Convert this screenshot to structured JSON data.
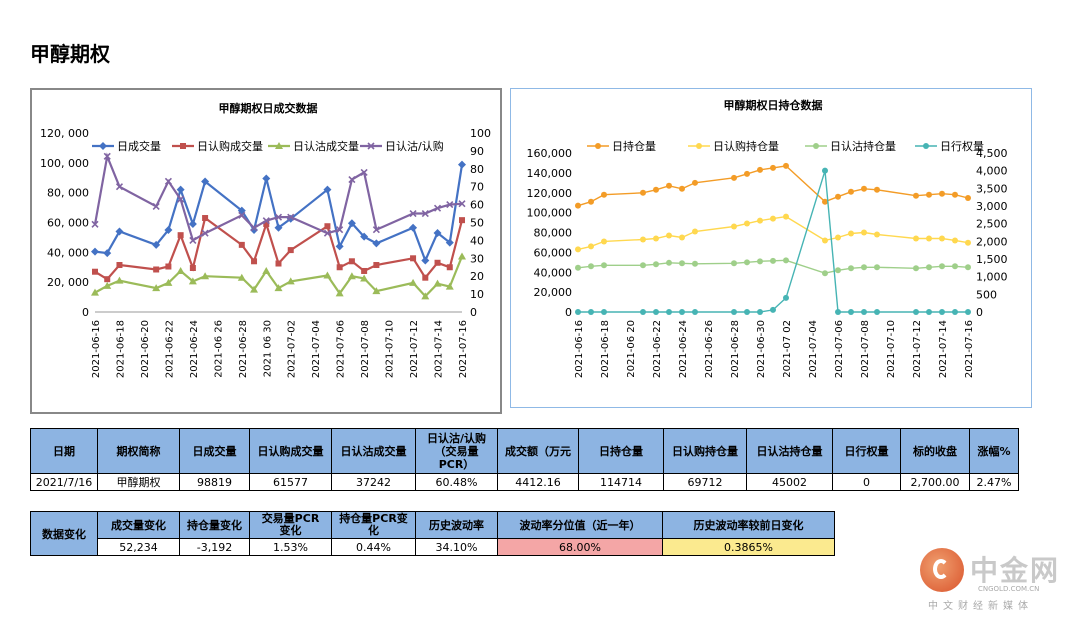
{
  "page_title": "甲醇期权",
  "chart_data": [
    {
      "type": "line",
      "title": "甲醇期权日成交数据",
      "x": [
        "2021-06-16",
        "2021-06-17",
        "2021-06-18",
        "2021-06-21",
        "2021-06-22",
        "2021-06-23",
        "2021-06-24",
        "2021-06-25",
        "2021-06-28",
        "2021-06-29",
        "2021-06-30",
        "2021-07-01",
        "2021-07-02",
        "2021-07-05",
        "2021-07-06",
        "2021-07-07",
        "2021-07-08",
        "2021-07-09",
        "2021-07-12",
        "2021-07-13",
        "2021-07-14",
        "2021-07-15",
        "2021-07-16"
      ],
      "x_ticks": [
        "2021-06-16",
        "2021-06-18",
        "2021-06-20",
        "2021-06-22",
        "2021-06-24",
        "2021-06 26",
        "2021-06-28",
        "2021 06 30",
        "2021-07-02",
        "2021-07-04",
        "2021-07-06",
        "2021-07-08",
        "2021-07-10",
        "2021-07-12",
        "2021-07-14",
        "2021-07-16"
      ],
      "y_left": {
        "range": [
          0,
          120000
        ],
        "ticks": [
          "0",
          "20, 000",
          "40, 000",
          "60, 000",
          "80, 000",
          "100, 000",
          "120, 000"
        ]
      },
      "y_right": {
        "range": [
          0,
          100
        ],
        "ticks": [
          "0",
          "10",
          "20",
          "30",
          "40",
          "50",
          "60",
          "70",
          "80",
          "90",
          "100"
        ]
      },
      "series": [
        {
          "name": "日成交量",
          "axis": "left",
          "color": "#4472c4",
          "marker": "diamond",
          "values": [
            40500,
            39500,
            54000,
            45000,
            55000,
            82000,
            59000,
            87500,
            68000,
            55000,
            89500,
            56500,
            62500,
            82000,
            44000,
            59500,
            50500,
            46000,
            56500,
            34500,
            53000,
            46500,
            98819
          ]
        },
        {
          "name": "日认购成交量",
          "axis": "left",
          "color": "#c0504d",
          "marker": "square",
          "values": [
            27000,
            22000,
            31500,
            28500,
            30500,
            51500,
            29500,
            63000,
            45000,
            34000,
            59000,
            32500,
            41500,
            57500,
            30000,
            34000,
            27500,
            31500,
            36000,
            23000,
            33000,
            30000,
            61577
          ]
        },
        {
          "name": "日认沽成交量",
          "axis": "left",
          "color": "#9bbb59",
          "marker": "triangle",
          "values": [
            13000,
            17500,
            21000,
            16000,
            19500,
            27500,
            20500,
            24000,
            23000,
            15000,
            27500,
            16000,
            20500,
            24500,
            12500,
            24000,
            22500,
            14000,
            19500,
            10500,
            19000,
            17000,
            37242
          ]
        },
        {
          "name": "日认沽/认购",
          "axis": "right",
          "color": "#8064a2",
          "marker": "x",
          "values": [
            49,
            87,
            70,
            59,
            73,
            63,
            40,
            44,
            54,
            47,
            51,
            53,
            53,
            44,
            46,
            74,
            78,
            46,
            55,
            55,
            58,
            60,
            60.48
          ]
        }
      ]
    },
    {
      "type": "line",
      "title": "甲醇期权日持仓数据",
      "x": [
        "2021-06-16",
        "2021-06-17",
        "2021-06-18",
        "2021-06-21",
        "2021-06-22",
        "2021-06-23",
        "2021-06-24",
        "2021-06-25",
        "2021-06-28",
        "2021-06-29",
        "2021-06-30",
        "2021-07-01",
        "2021-07-02",
        "2021-07-05",
        "2021-07-06",
        "2021-07-07",
        "2021-07-08",
        "2021-07-09",
        "2021-07-12",
        "2021-07-13",
        "2021-07-14",
        "2021-07-15",
        "2021-07-16"
      ],
      "x_ticks": [
        "2021-06-16",
        "2021-06-18",
        "2021-06 20",
        "2021-06-22",
        "2021-06-24",
        "2021-06-26",
        "2021-06-28",
        "2021-06-30",
        "2021-07 02",
        "2021-07-04",
        "2021-07-06",
        "2021-07-08",
        "2021-07-10",
        "2021-07-12",
        "2021-07-14",
        "2021-07-16"
      ],
      "y_left": {
        "range": [
          0,
          160000
        ],
        "ticks": [
          "0",
          "20,000",
          "40,000",
          "60,000",
          "80,000",
          "100,000",
          "120,000",
          "140,000",
          "160,000"
        ]
      },
      "y_right": {
        "range": [
          0,
          4500
        ],
        "ticks": [
          "0",
          "500",
          "1,000",
          "1,500",
          "2,000",
          "2,500",
          "3,000",
          "3,500",
          "4,000",
          "4,500"
        ]
      },
      "series": [
        {
          "name": "日持仓量",
          "axis": "left",
          "color": "#f39c27",
          "values": [
            107000,
            111000,
            118000,
            120000,
            123000,
            127000,
            124000,
            130000,
            135000,
            139000,
            143000,
            145000,
            147000,
            111000,
            116000,
            121000,
            124000,
            123000,
            117000,
            118000,
            119000,
            118000,
            114714
          ]
        },
        {
          "name": "日认购持仓量",
          "axis": "left",
          "color": "#ffd84f",
          "values": [
            63000,
            66000,
            71000,
            73000,
            74000,
            77000,
            75000,
            81000,
            86000,
            89000,
            92000,
            94000,
            96000,
            72000,
            75000,
            79000,
            80000,
            78000,
            74000,
            74000,
            74000,
            72000,
            69712
          ]
        },
        {
          "name": "日认沽持仓量",
          "axis": "left",
          "color": "#9fcf8a",
          "values": [
            44500,
            46000,
            47000,
            47000,
            48000,
            49500,
            49000,
            48500,
            49000,
            50000,
            51000,
            51500,
            52000,
            39000,
            42000,
            44000,
            45000,
            45000,
            44000,
            45000,
            46000,
            46000,
            45002
          ]
        },
        {
          "name": "日行权量",
          "axis": "right",
          "color": "#46b4b4",
          "values": [
            0,
            0,
            0,
            0,
            0,
            0,
            0,
            0,
            0,
            0,
            0,
            60,
            400,
            4000,
            0,
            0,
            0,
            0,
            0,
            0,
            0,
            0,
            0
          ]
        }
      ]
    }
  ],
  "table1": {
    "headers": [
      "日期",
      "期权简称",
      "日成交量",
      "日认购成交量",
      "日认沽成交量",
      "日认沽/认购\n（交易量\nPCR）",
      "成交额（万元",
      "日持仓量",
      "日认购持仓量",
      "日认沽持仓量",
      "日行权量",
      "标的收盘",
      "涨幅%"
    ],
    "row": [
      "2021/7/16",
      "甲醇期权",
      "98819",
      "61577",
      "37242",
      "60.48%",
      "4412.16",
      "114714",
      "69712",
      "45002",
      "0",
      "2,700.00",
      "2.47%"
    ]
  },
  "table2": {
    "label": "数据变化",
    "headers": [
      "成交量变化",
      "持仓量变化",
      "交易量PCR\n变化",
      "持仓量PCR变\n化",
      "历史波动率",
      "波动率分位值（近一年）",
      "历史波动率较前日变化"
    ],
    "row": [
      "52,234",
      "-3,192",
      "1.53%",
      "0.44%",
      "34.10%",
      "68.00%",
      "0.3865%"
    ]
  },
  "logo": {
    "name": "中金网",
    "url_text": "CNGOLD.COM.CN",
    "tagline": "中文财经新媒体"
  }
}
